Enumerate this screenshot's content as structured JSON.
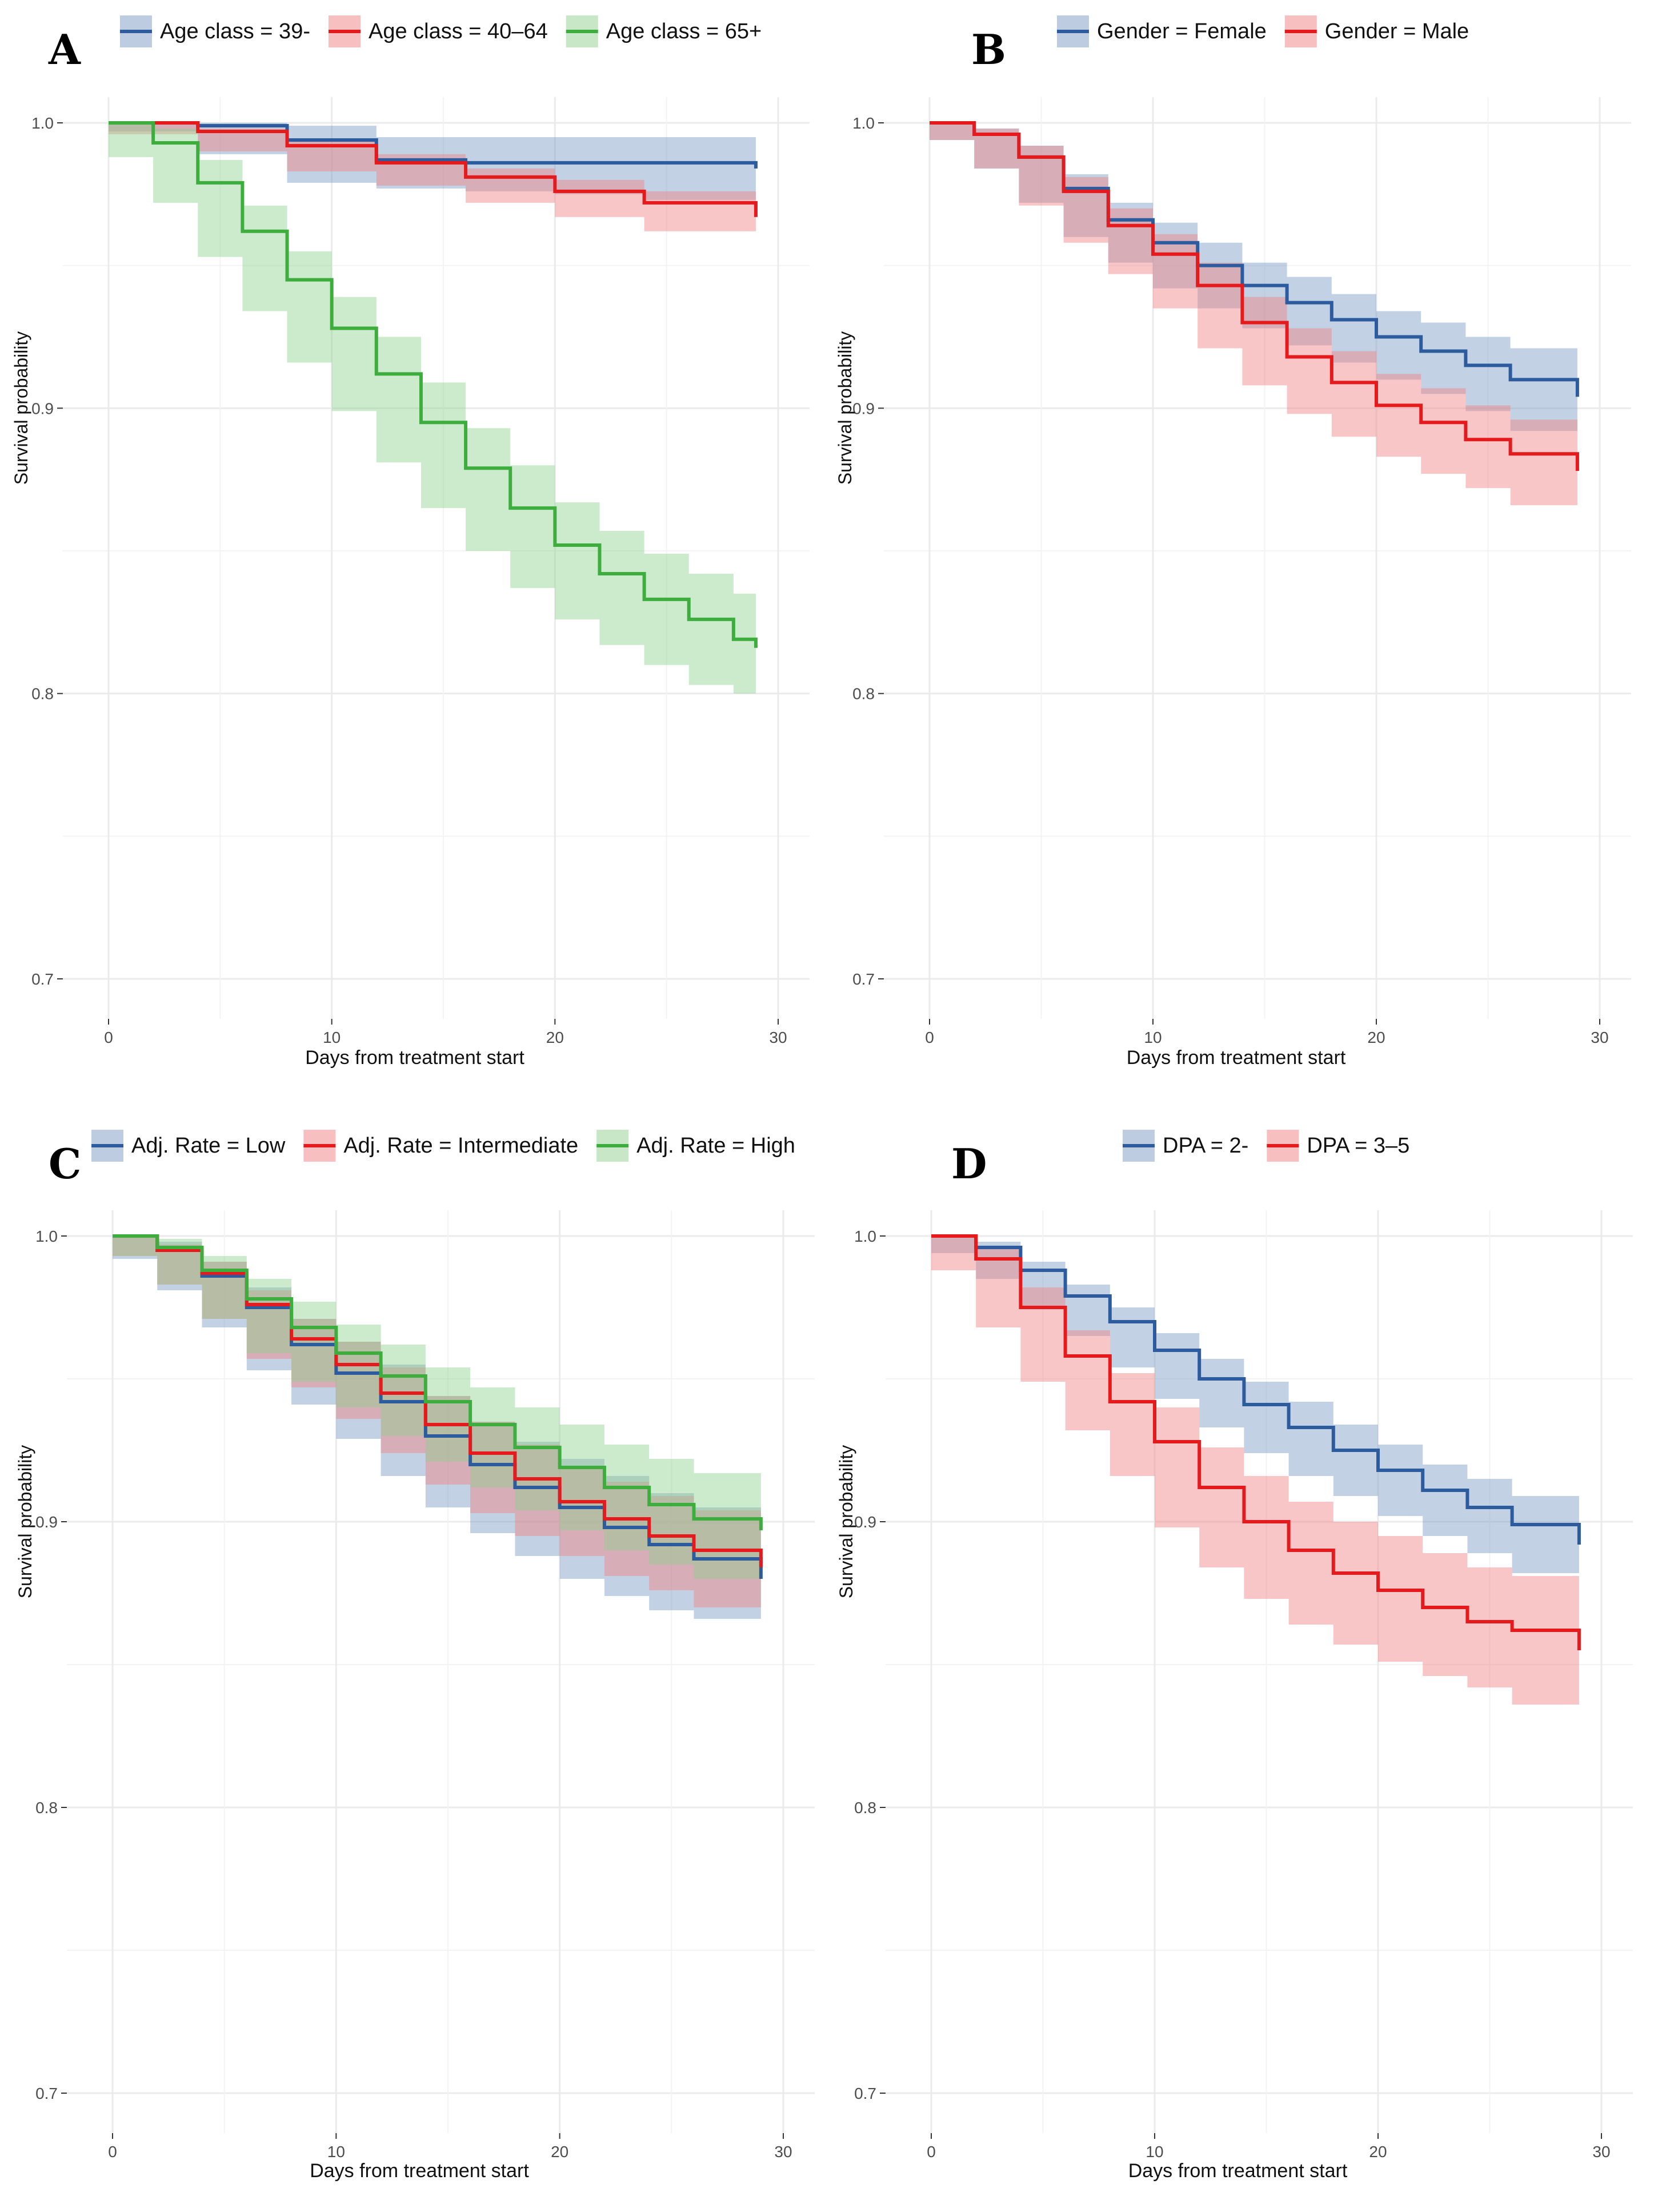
{
  "chart_data": [
    {
      "panel": "A",
      "type": "line",
      "subtype": "kaplan-meier",
      "xlabel": "Days from treatment start",
      "ylabel": "Survival probability",
      "xlim": [
        0,
        30
      ],
      "ylim": [
        0.7,
        1.0
      ],
      "xticks": [
        "0",
        "10",
        "20",
        "30"
      ],
      "yticks": [
        "0.7",
        "0.8",
        "0.9",
        "1.0"
      ],
      "legend_position": "top",
      "series": [
        {
          "name": "Age class = 39-",
          "color": "#2C5C9E",
          "ci_color": "#7B9AC4",
          "x": [
            0,
            4,
            8,
            12,
            16,
            20,
            24,
            29
          ],
          "values": [
            1.0,
            0.999,
            0.994,
            0.987,
            0.986,
            0.986,
            0.986,
            0.984
          ],
          "lower": [
            1.0,
            0.997,
            0.989,
            0.979,
            0.977,
            0.976,
            0.975,
            0.973
          ],
          "upper": [
            1.0,
            1.0,
            0.999,
            0.995,
            0.995,
            0.995,
            0.995,
            0.995
          ]
        },
        {
          "name": "Age class = 40–64",
          "color": "#E41A1C",
          "ci_color": "#F08080",
          "x": [
            0,
            4,
            8,
            12,
            16,
            20,
            24,
            29
          ],
          "values": [
            1.0,
            0.997,
            0.992,
            0.986,
            0.981,
            0.976,
            0.972,
            0.967
          ],
          "lower": [
            1.0,
            0.996,
            0.99,
            0.983,
            0.978,
            0.972,
            0.967,
            0.962
          ],
          "upper": [
            1.0,
            0.998,
            0.994,
            0.989,
            0.984,
            0.98,
            0.976,
            0.971
          ]
        },
        {
          "name": "Age class = 65+",
          "color": "#3DAE3D",
          "ci_color": "#8FD08F",
          "x": [
            0,
            2,
            4,
            6,
            8,
            10,
            12,
            14,
            16,
            18,
            20,
            22,
            24,
            26,
            28,
            29
          ],
          "values": [
            1.0,
            0.993,
            0.979,
            0.962,
            0.945,
            0.928,
            0.912,
            0.895,
            0.879,
            0.865,
            0.852,
            0.842,
            0.833,
            0.826,
            0.819,
            0.816
          ],
          "lower": [
            1.0,
            0.988,
            0.972,
            0.953,
            0.934,
            0.916,
            0.899,
            0.881,
            0.865,
            0.85,
            0.837,
            0.826,
            0.817,
            0.81,
            0.803,
            0.8
          ],
          "upper": [
            1.0,
            0.998,
            0.987,
            0.971,
            0.955,
            0.939,
            0.925,
            0.909,
            0.893,
            0.88,
            0.867,
            0.857,
            0.849,
            0.842,
            0.835,
            0.832
          ]
        }
      ]
    },
    {
      "panel": "B",
      "type": "line",
      "subtype": "kaplan-meier",
      "xlabel": "Days from treatment start",
      "ylabel": "Survival probability",
      "xlim": [
        0,
        30
      ],
      "ylim": [
        0.7,
        1.0
      ],
      "xticks": [
        "0",
        "10",
        "20",
        "30"
      ],
      "yticks": [
        "0.7",
        "0.8",
        "0.9",
        "1.0"
      ],
      "legend_position": "top",
      "series": [
        {
          "name": "Gender = Female",
          "color": "#2C5C9E",
          "ci_color": "#7B9AC4",
          "x": [
            0,
            2,
            4,
            6,
            8,
            10,
            12,
            14,
            16,
            18,
            20,
            22,
            24,
            26,
            29
          ],
          "values": [
            1.0,
            0.996,
            0.988,
            0.977,
            0.966,
            0.958,
            0.95,
            0.943,
            0.937,
            0.931,
            0.925,
            0.92,
            0.915,
            0.91,
            0.904
          ],
          "lower": [
            1.0,
            0.994,
            0.984,
            0.972,
            0.96,
            0.951,
            0.942,
            0.935,
            0.928,
            0.922,
            0.916,
            0.91,
            0.905,
            0.899,
            0.892
          ],
          "upper": [
            1.0,
            0.998,
            0.992,
            0.982,
            0.972,
            0.965,
            0.958,
            0.951,
            0.946,
            0.94,
            0.934,
            0.93,
            0.925,
            0.921,
            0.916
          ]
        },
        {
          "name": "Gender = Male",
          "color": "#E41A1C",
          "ci_color": "#F08080",
          "x": [
            0,
            2,
            4,
            6,
            8,
            10,
            12,
            14,
            16,
            18,
            20,
            22,
            24,
            26,
            29
          ],
          "values": [
            1.0,
            0.996,
            0.988,
            0.976,
            0.964,
            0.954,
            0.943,
            0.93,
            0.918,
            0.909,
            0.901,
            0.895,
            0.889,
            0.884,
            0.878
          ],
          "lower": [
            1.0,
            0.994,
            0.984,
            0.971,
            0.958,
            0.947,
            0.935,
            0.921,
            0.908,
            0.898,
            0.89,
            0.883,
            0.877,
            0.872,
            0.866
          ],
          "upper": [
            1.0,
            0.998,
            0.992,
            0.981,
            0.97,
            0.961,
            0.951,
            0.939,
            0.928,
            0.92,
            0.912,
            0.907,
            0.901,
            0.896,
            0.89
          ]
        }
      ]
    },
    {
      "panel": "C",
      "type": "line",
      "subtype": "kaplan-meier",
      "xlabel": "Days from treatment start",
      "ylabel": "Survival probability",
      "xlim": [
        0,
        30
      ],
      "ylim": [
        0.7,
        1.0
      ],
      "xticks": [
        "0",
        "10",
        "20",
        "30"
      ],
      "yticks": [
        "0.7",
        "0.8",
        "0.9",
        "1.0"
      ],
      "legend_position": "top",
      "series": [
        {
          "name": "Adj. Rate = Low",
          "color": "#2C5C9E",
          "ci_color": "#7B9AC4",
          "x": [
            0,
            2,
            4,
            6,
            8,
            10,
            12,
            14,
            16,
            18,
            20,
            22,
            24,
            26,
            29
          ],
          "values": [
            1.0,
            0.995,
            0.986,
            0.975,
            0.962,
            0.952,
            0.942,
            0.93,
            0.92,
            0.912,
            0.905,
            0.898,
            0.892,
            0.887,
            0.88
          ],
          "lower": [
            1.0,
            0.992,
            0.981,
            0.968,
            0.953,
            0.941,
            0.929,
            0.916,
            0.905,
            0.896,
            0.888,
            0.88,
            0.874,
            0.869,
            0.866
          ],
          "upper": [
            1.0,
            0.998,
            0.991,
            0.982,
            0.971,
            0.963,
            0.955,
            0.944,
            0.935,
            0.928,
            0.922,
            0.916,
            0.91,
            0.905,
            0.894
          ]
        },
        {
          "name": "Adj. Rate = Intermediate",
          "color": "#E41A1C",
          "ci_color": "#F08080",
          "x": [
            0,
            2,
            4,
            6,
            8,
            10,
            12,
            14,
            16,
            18,
            20,
            22,
            24,
            26,
            29
          ],
          "values": [
            1.0,
            0.995,
            0.987,
            0.976,
            0.964,
            0.955,
            0.945,
            0.934,
            0.924,
            0.915,
            0.907,
            0.901,
            0.895,
            0.89,
            0.884
          ],
          "lower": [
            1.0,
            0.993,
            0.983,
            0.971,
            0.957,
            0.947,
            0.936,
            0.924,
            0.913,
            0.903,
            0.895,
            0.888,
            0.881,
            0.876,
            0.87
          ],
          "upper": [
            1.0,
            0.997,
            0.991,
            0.981,
            0.971,
            0.963,
            0.954,
            0.944,
            0.935,
            0.927,
            0.919,
            0.914,
            0.909,
            0.904,
            0.898
          ]
        },
        {
          "name": "Adj. Rate = High",
          "color": "#3DAE3D",
          "ci_color": "#8FD08F",
          "x": [
            0,
            2,
            4,
            6,
            8,
            10,
            12,
            14,
            16,
            18,
            20,
            22,
            24,
            26,
            29
          ],
          "values": [
            1.0,
            0.996,
            0.988,
            0.978,
            0.968,
            0.959,
            0.951,
            0.942,
            0.934,
            0.926,
            0.919,
            0.912,
            0.906,
            0.901,
            0.897
          ],
          "lower": [
            1.0,
            0.993,
            0.983,
            0.971,
            0.959,
            0.949,
            0.94,
            0.93,
            0.921,
            0.912,
            0.904,
            0.897,
            0.89,
            0.885,
            0.88
          ],
          "upper": [
            1.0,
            0.999,
            0.993,
            0.985,
            0.977,
            0.969,
            0.962,
            0.954,
            0.947,
            0.94,
            0.934,
            0.927,
            0.922,
            0.917,
            0.913
          ]
        }
      ]
    },
    {
      "panel": "D",
      "type": "line",
      "subtype": "kaplan-meier",
      "xlabel": "Days from treatment start",
      "ylabel": "Survival probability",
      "xlim": [
        0,
        30
      ],
      "ylim": [
        0.7,
        1.0
      ],
      "xticks": [
        "0",
        "10",
        "20",
        "30"
      ],
      "yticks": [
        "0.7",
        "0.8",
        "0.9",
        "1.0"
      ],
      "legend_position": "top",
      "series": [
        {
          "name": "DPA = 2-",
          "color": "#2C5C9E",
          "ci_color": "#7B9AC4",
          "x": [
            0,
            2,
            4,
            6,
            8,
            10,
            12,
            14,
            16,
            18,
            20,
            22,
            24,
            26,
            29
          ],
          "values": [
            1.0,
            0.996,
            0.988,
            0.979,
            0.97,
            0.96,
            0.95,
            0.941,
            0.933,
            0.925,
            0.918,
            0.911,
            0.905,
            0.899,
            0.892
          ],
          "lower": [
            1.0,
            0.994,
            0.985,
            0.975,
            0.965,
            0.954,
            0.943,
            0.933,
            0.924,
            0.916,
            0.909,
            0.902,
            0.895,
            0.889,
            0.882
          ],
          "upper": [
            1.0,
            0.998,
            0.991,
            0.983,
            0.975,
            0.966,
            0.957,
            0.949,
            0.942,
            0.934,
            0.927,
            0.92,
            0.915,
            0.909,
            0.902
          ]
        },
        {
          "name": "DPA = 3–5",
          "color": "#E41A1C",
          "ci_color": "#F08080",
          "x": [
            0,
            2,
            4,
            6,
            8,
            10,
            12,
            14,
            16,
            18,
            20,
            22,
            24,
            26,
            29
          ],
          "values": [
            1.0,
            0.992,
            0.975,
            0.958,
            0.942,
            0.928,
            0.912,
            0.9,
            0.89,
            0.882,
            0.876,
            0.87,
            0.865,
            0.862,
            0.855
          ],
          "lower": [
            1.0,
            0.988,
            0.968,
            0.949,
            0.932,
            0.916,
            0.898,
            0.884,
            0.873,
            0.864,
            0.857,
            0.851,
            0.846,
            0.842,
            0.836
          ],
          "upper": [
            1.0,
            0.996,
            0.982,
            0.967,
            0.952,
            0.94,
            0.926,
            0.916,
            0.907,
            0.9,
            0.895,
            0.889,
            0.884,
            0.881,
            0.874
          ]
        }
      ]
    }
  ]
}
